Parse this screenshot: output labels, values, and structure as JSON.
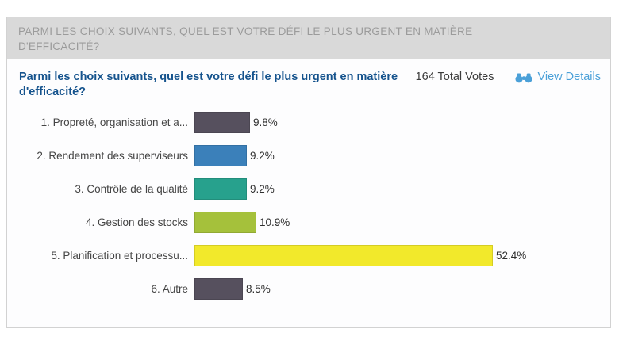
{
  "header": {
    "title": "PARMI LES CHOIX SUIVANTS, QUEL EST VOTRE DÉFI LE PLUS URGENT EN MATIÈRE D'EFFICACITÉ?"
  },
  "poll": {
    "question": "Parmi les choix suivants, quel est votre défi le plus urgent en matière d'efficacité?",
    "total_votes": "164 Total Votes",
    "view_details_label": "View Details",
    "view_details_icon": "binoculars-icon"
  },
  "chart_data": {
    "type": "bar",
    "orientation": "horizontal",
    "title": "Parmi les choix suivants, quel est votre défi le plus urgent en matière d'efficacité?",
    "total_votes": 164,
    "categories": [
      "1. Propreté, organisation et a...",
      "2. Rendement des superviseurs",
      "3. Contrôle de la qualité",
      "4. Gestion des stocks",
      "5. Planification et processu...",
      "6. Autre"
    ],
    "values": [
      9.8,
      9.2,
      9.2,
      10.9,
      52.4,
      8.5
    ],
    "value_labels": [
      "9.8%",
      "9.2%",
      "9.2%",
      "10.9%",
      "52.4%",
      "8.5%"
    ],
    "unit": "%",
    "bar_colors": [
      "#56505e",
      "#3b80ba",
      "#27a18d",
      "#a5c13b",
      "#f2e92b",
      "#56505e"
    ],
    "xlim": [
      0,
      55
    ],
    "grid": false,
    "legend": false
  },
  "colors": {
    "header_bg": "#d9d9d9",
    "header_text": "#9b9b9b",
    "question_text": "#15538d",
    "link_blue": "#4ba0d8",
    "panel_border": "#d2d2d2",
    "label_text": "#454545"
  }
}
